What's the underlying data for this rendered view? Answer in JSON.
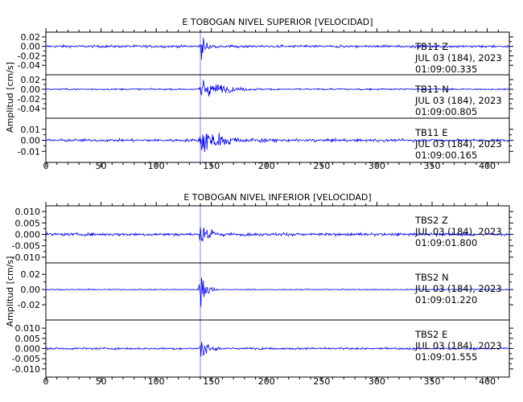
{
  "chart_data": [
    {
      "type": "line",
      "title": "E TOBOGAN NIVEL SUPERIOR [VELOCIDAD]",
      "ylabel": "Amplitud [cm/s]",
      "xlabel": "",
      "xlim": [
        0,
        420
      ],
      "x_ticks": [
        "0",
        "50",
        "100",
        "150",
        "200",
        "250",
        "300",
        "350",
        "400"
      ],
      "line_color": "#0000ff",
      "grid": false,
      "event_onset_x": 140,
      "series": [
        {
          "name": "TB11 Z",
          "ylim": [
            -0.06,
            0.03
          ],
          "y_ticks": [
            "0.02",
            "0.00",
            "-0.02",
            "-0.04"
          ],
          "noise_level": 0.0025,
          "peak_amplitude": 0.03,
          "decay_seconds": 5,
          "lines": [
            "TB11    Z",
            "JUL 03 (184), 2023",
            "01:09:00.335"
          ]
        },
        {
          "name": "TB11 N",
          "ylim": [
            -0.06,
            0.03
          ],
          "y_ticks": [
            "0.02",
            "0.00",
            "-0.02",
            "-0.04"
          ],
          "noise_level": 0.0015,
          "peak_amplitude": 0.028,
          "decay_seconds": 18,
          "lines": [
            "TB11    N",
            "JUL 03 (184), 2023",
            "01:09:00.805"
          ]
        },
        {
          "name": "TB11 E",
          "ylim": [
            -0.02,
            0.02
          ],
          "y_ticks": [
            "0.01",
            "0.00",
            "-0.01"
          ],
          "noise_level": 0.0012,
          "peak_amplitude": 0.014,
          "decay_seconds": 22,
          "lines": [
            "TB11    E",
            "JUL 03 (184), 2023",
            "01:09:00.165"
          ]
        }
      ]
    },
    {
      "type": "line",
      "title": "E TOBOGAN NIVEL INFERIOR [VELOCIDAD]",
      "ylabel": "Amplitud [cm/s]",
      "xlabel": "",
      "xlim": [
        0,
        420
      ],
      "x_ticks": [
        "0",
        "50",
        "100",
        "150",
        "200",
        "250",
        "300",
        "350",
        "400"
      ],
      "line_color": "#0000ff",
      "grid": false,
      "event_onset_x": 140,
      "series": [
        {
          "name": "TBS2 Z",
          "ylim": [
            -0.0125,
            0.0125
          ],
          "y_ticks": [
            "0.010",
            "0.005",
            "0.000",
            "-0.005",
            "-0.010"
          ],
          "noise_level": 0.0006,
          "peak_amplitude": 0.007,
          "decay_seconds": 8,
          "lines": [
            "TBS2    Z",
            "JUL 03 (184), 2023",
            "01:09:01.800"
          ]
        },
        {
          "name": "TBS2 N",
          "ylim": [
            -0.04,
            0.035
          ],
          "y_ticks": [
            "0.02",
            "0.00",
            "-0.02"
          ],
          "noise_level": 0.0006,
          "peak_amplitude": 0.03,
          "decay_seconds": 5,
          "lines": [
            "TBS2    N",
            "JUL 03 (184), 2023",
            "01:09:01.220"
          ]
        },
        {
          "name": "TBS2 E",
          "ylim": [
            -0.014,
            0.014
          ],
          "y_ticks": [
            "0.010",
            "0.005",
            "0.000",
            "-0.005",
            "-0.010"
          ],
          "noise_level": 0.0005,
          "peak_amplitude": 0.008,
          "decay_seconds": 6,
          "lines": [
            "TBS2    E",
            "JUL 03 (184), 2023",
            "01:09:01.555"
          ]
        }
      ]
    }
  ]
}
